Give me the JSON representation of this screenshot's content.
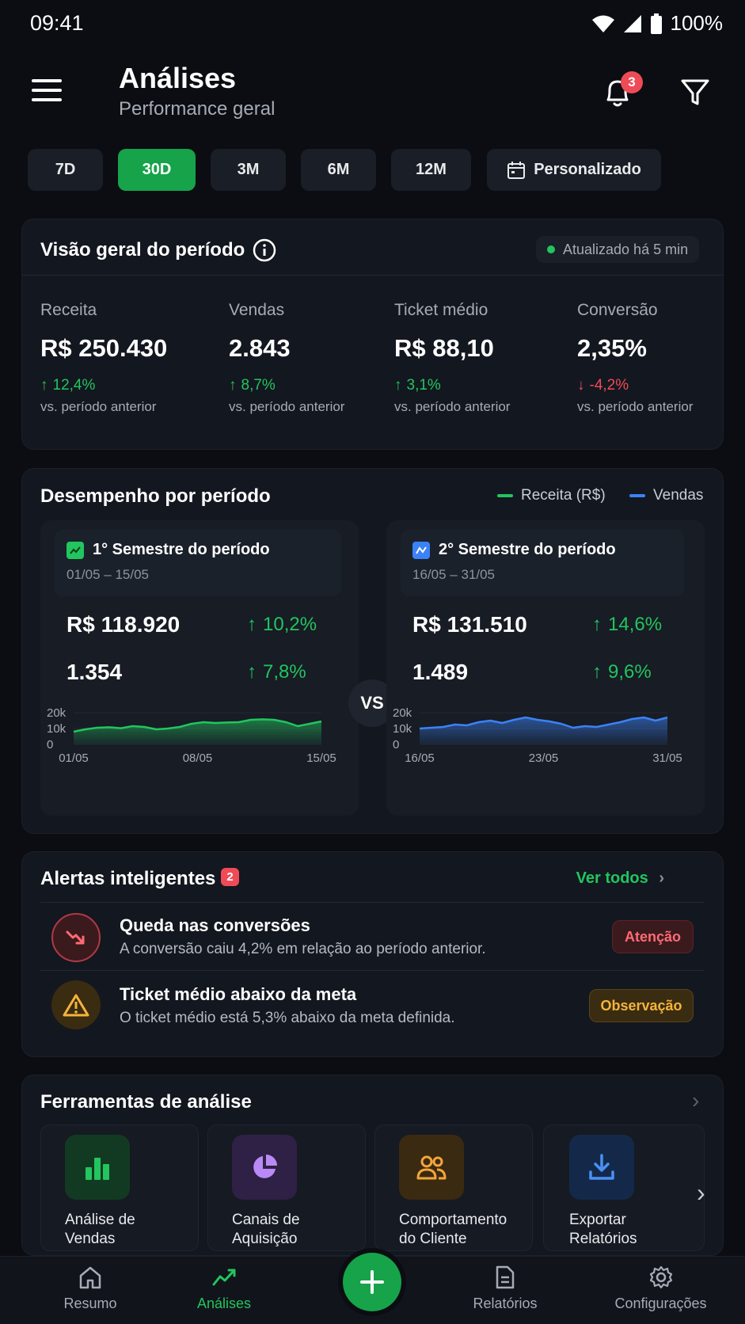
{
  "status": {
    "time": "09:41",
    "battery": "100%"
  },
  "header": {
    "title": "Análises",
    "subtitle": "Performance geral",
    "notifications": "3"
  },
  "periods": [
    "7D",
    "30D",
    "3M",
    "6M",
    "12M",
    "Personalizado"
  ],
  "active_period": "30D",
  "overview": {
    "title": "Visão geral do período",
    "updated": "Atualizado há 5 min",
    "metrics": [
      {
        "label": "Receita",
        "value": "R$ 250.430",
        "delta": "12,4%",
        "direction": "up",
        "compare": "vs. período anterior"
      },
      {
        "label": "Vendas",
        "value": "2.843",
        "delta": "8,7%",
        "direction": "up",
        "compare": "vs. período anterior"
      },
      {
        "label": "Ticket médio",
        "value": "R$ 88,10",
        "delta": "3,1%",
        "direction": "up",
        "compare": "vs. período anterior"
      },
      {
        "label": "Conversão",
        "value": "2,35%",
        "delta": "-4,2%",
        "direction": "down",
        "compare": "vs. período anterior"
      }
    ]
  },
  "performance": {
    "title": "Desempenho por período",
    "legend": [
      {
        "name": "Receita (R$)",
        "color": "#22c55e"
      },
      {
        "name": "Vendas",
        "color": "#3b82f6"
      }
    ],
    "vs": "VS",
    "first": {
      "title": "1° Semestre do período",
      "range": "01/05 – 15/05",
      "revenue": "R$ 118.920",
      "revenue_delta": "10,2%",
      "sales": "1.354",
      "sales_delta": "7,8%"
    },
    "second": {
      "title": "2° Semestre do período",
      "range": "16/05 – 31/05",
      "revenue": "R$ 131.510",
      "revenue_delta": "14,6%",
      "sales": "1.489",
      "sales_delta": "9,6%"
    }
  },
  "chart_data": [
    {
      "type": "area",
      "color": "#22c55e",
      "yticks": [
        "20k",
        "10k",
        "0"
      ],
      "ylim": [
        0,
        20000
      ],
      "xticks": [
        "01/05",
        "08/05",
        "15/05"
      ],
      "values": [
        8000,
        9500,
        10500,
        10800,
        10200,
        11500,
        11000,
        9500,
        10000,
        11000,
        13000,
        14000,
        13500,
        13800,
        14000,
        15500,
        15800,
        15500,
        14000,
        11500,
        13000,
        14500
      ]
    },
    {
      "type": "area",
      "color": "#3b82f6",
      "yticks": [
        "20k",
        "10k",
        "0"
      ],
      "ylim": [
        0,
        20000
      ],
      "xticks": [
        "16/05",
        "23/05",
        "31/05"
      ],
      "values": [
        10000,
        10500,
        11000,
        12500,
        12000,
        14000,
        15000,
        13500,
        15500,
        17000,
        15500,
        14500,
        13000,
        10500,
        11500,
        11000,
        12500,
        14000,
        16000,
        17000,
        15000,
        17000
      ]
    }
  ],
  "alerts": {
    "title": "Alertas inteligentes",
    "count": "2",
    "see_all": "Ver todos",
    "items": [
      {
        "title": "Queda nas conversões",
        "desc": "A conversão caiu 4,2% em relação ao período anterior.",
        "tag": "Atenção"
      },
      {
        "title": "Ticket médio abaixo da meta",
        "desc": "O ticket médio está 5,3% abaixo da meta definida.",
        "tag": "Observação"
      }
    ]
  },
  "tools": {
    "title": "Ferramentas de análise",
    "items": [
      {
        "label": "Análise de\nVendas",
        "icon": "bar-chart-icon"
      },
      {
        "label": "Canais de\nAquisição",
        "icon": "pie-chart-icon"
      },
      {
        "label": "Comportamento\ndo Cliente",
        "icon": "users-icon"
      },
      {
        "label": "Exportar\nRelatórios",
        "icon": "download-icon"
      }
    ]
  },
  "nav": {
    "items": [
      "Resumo",
      "Análises",
      "Relatórios",
      "Configurações"
    ],
    "active": "Análises"
  }
}
